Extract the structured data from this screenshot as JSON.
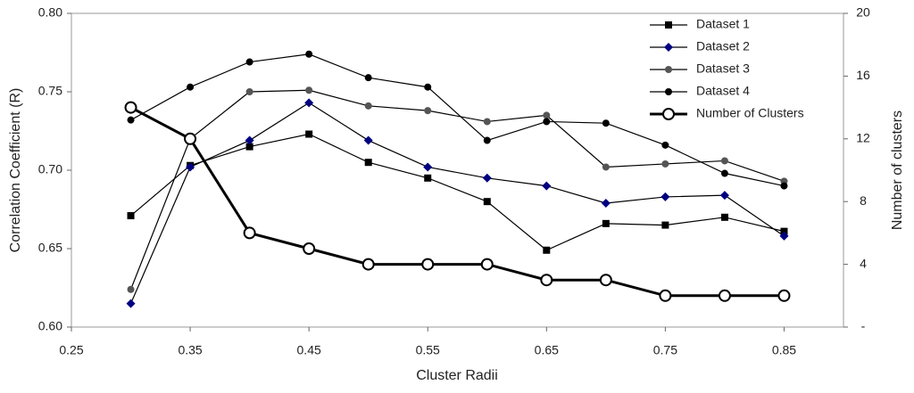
{
  "chart_data": {
    "type": "line",
    "x_label": "Cluster Radii",
    "y_label": "Correlation Coefficient (R)",
    "y2_label": "Number of clusters",
    "x": [
      0.3,
      0.35,
      0.4,
      0.45,
      0.5,
      0.55,
      0.6,
      0.65,
      0.7,
      0.75,
      0.8,
      0.85
    ],
    "xlim": [
      0.25,
      0.9
    ],
    "xticks": [
      {
        "value": 0.25,
        "label": "0.25"
      },
      {
        "value": 0.35,
        "label": "0.35"
      },
      {
        "value": 0.45,
        "label": "0.45"
      },
      {
        "value": 0.55,
        "label": "0.55"
      },
      {
        "value": 0.65,
        "label": "0.65"
      },
      {
        "value": 0.75,
        "label": "0.75"
      },
      {
        "value": 0.85,
        "label": "0.85"
      }
    ],
    "ylim": [
      0.6,
      0.8
    ],
    "yticks": [
      {
        "value": 0.6,
        "label": "0.60"
      },
      {
        "value": 0.65,
        "label": "0.65"
      },
      {
        "value": 0.7,
        "label": "0.70"
      },
      {
        "value": 0.75,
        "label": "0.75"
      },
      {
        "value": 0.8,
        "label": "0.80"
      }
    ],
    "y2lim": [
      0,
      20
    ],
    "y2ticks": [
      {
        "value": 0,
        "label": "-"
      },
      4,
      8,
      12,
      16,
      20
    ],
    "legend": "top-right",
    "series": [
      {
        "name": "Dataset 1",
        "color": "#000000",
        "marker": "square",
        "values": [
          0.671,
          0.703,
          0.715,
          0.723,
          0.705,
          0.695,
          0.68,
          0.649,
          0.666,
          0.665,
          0.67,
          0.661
        ]
      },
      {
        "name": "Dataset 2",
        "color": "#000080",
        "marker": "diamond",
        "values": [
          0.615,
          0.702,
          0.719,
          0.743,
          0.719,
          0.702,
          0.695,
          0.69,
          0.679,
          0.683,
          0.684,
          0.658
        ]
      },
      {
        "name": "Dataset 3",
        "color": "#555555",
        "marker": "circle",
        "values": [
          0.624,
          0.72,
          0.75,
          0.751,
          0.741,
          0.738,
          0.731,
          0.735,
          0.702,
          0.704,
          0.706,
          0.693
        ]
      },
      {
        "name": "Dataset 4",
        "color": "#000000",
        "marker": "circle",
        "values": [
          0.732,
          0.753,
          0.769,
          0.774,
          0.759,
          0.753,
          0.719,
          0.731,
          0.73,
          0.716,
          0.698,
          0.69
        ]
      },
      {
        "name": "Number of Clusters",
        "color": "#000000",
        "marker": "open-circle",
        "line_width": 3,
        "axis": "y2",
        "values": [
          14,
          12,
          6,
          5,
          4,
          4,
          4,
          3,
          3,
          2,
          2,
          2
        ]
      }
    ]
  }
}
